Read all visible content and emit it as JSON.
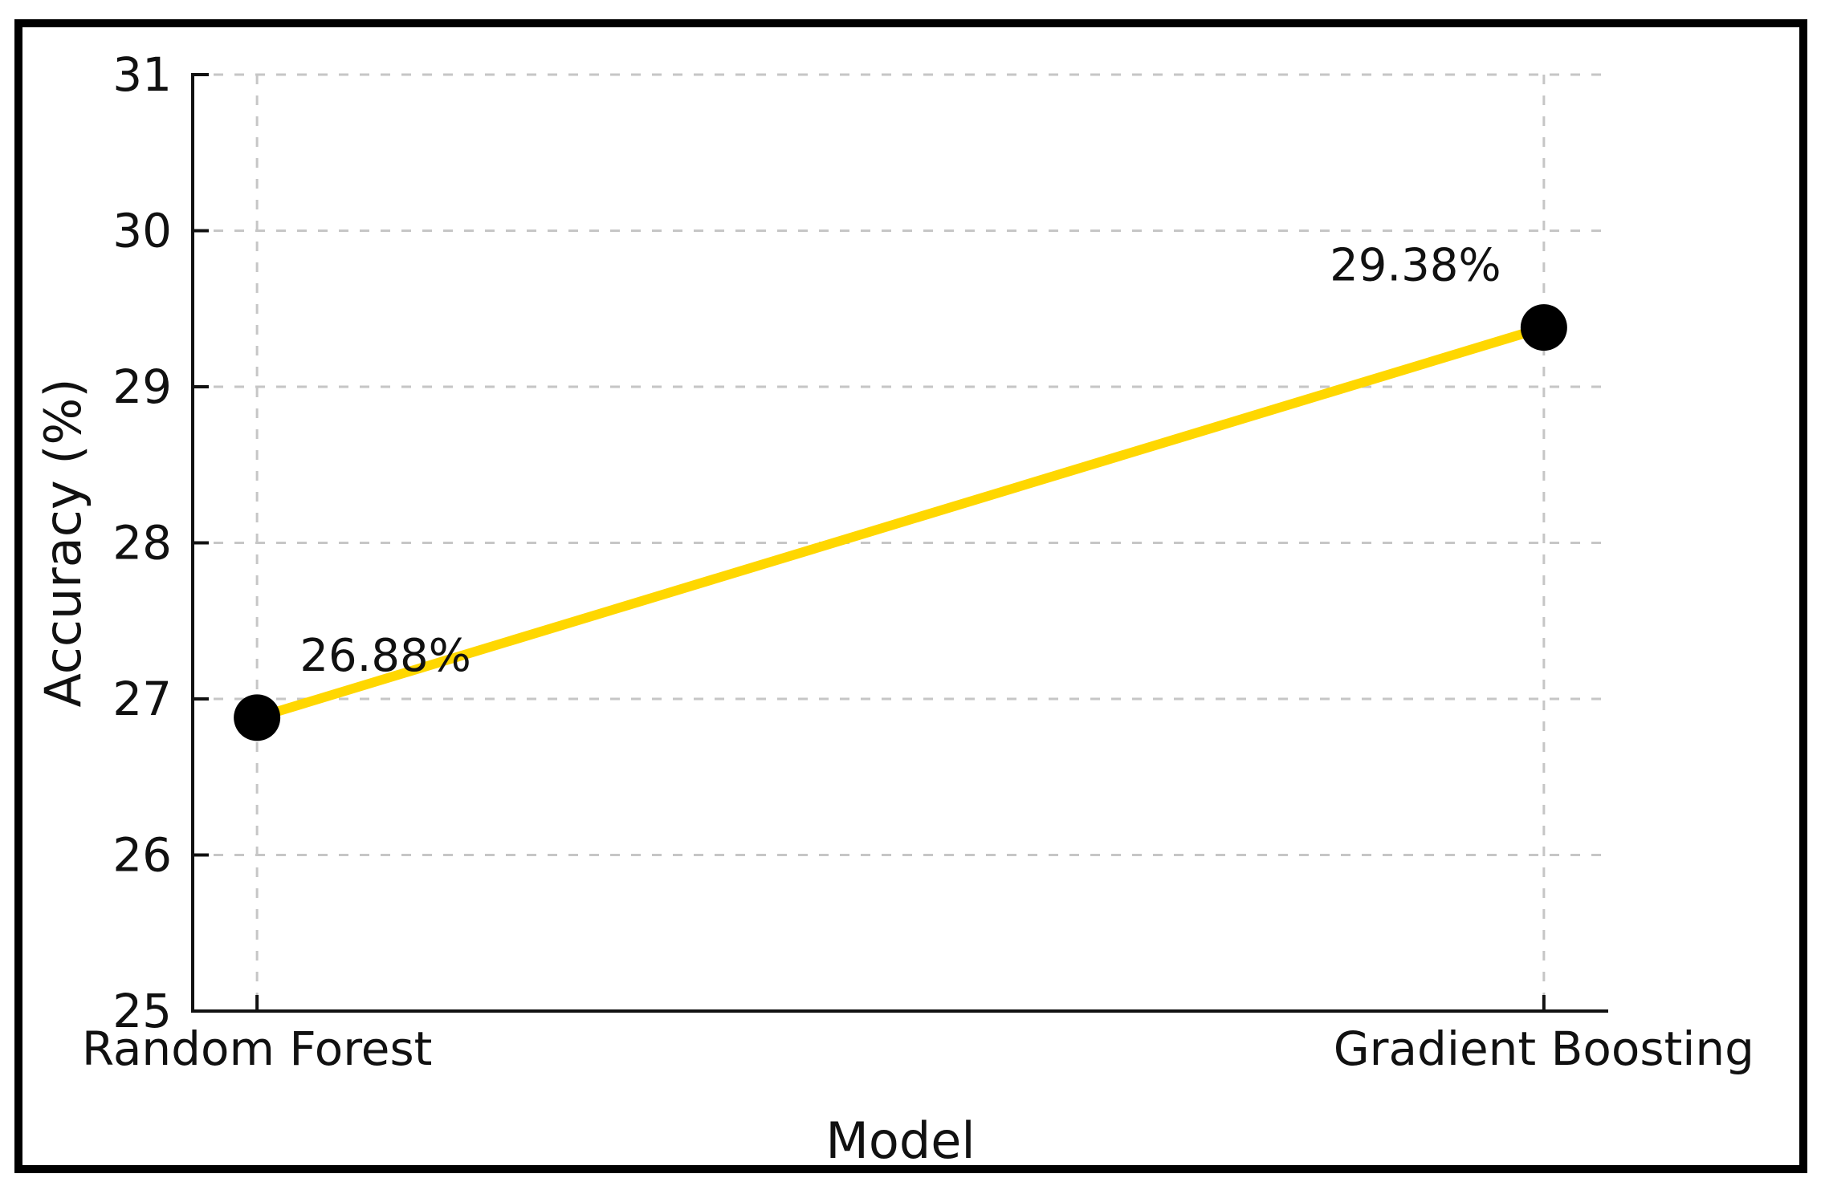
{
  "chart_data": {
    "type": "line",
    "title": "",
    "categories": [
      "Random Forest",
      "Gradient Boosting"
    ],
    "series": [
      {
        "name": "Accuracy",
        "values": [
          26.88,
          29.38
        ]
      }
    ],
    "point_labels": [
      "26.88%",
      "29.38%"
    ],
    "xlabel": "Model",
    "ylabel": "Accuracy (%)",
    "ylim": [
      25,
      31
    ],
    "yticks": [
      25,
      26,
      27,
      28,
      29,
      30,
      31
    ],
    "grid": "dashed",
    "legend": "none",
    "colors": {
      "line": "#FFD700",
      "marker": "#000000",
      "grid": "#c6c6c6",
      "spine": "#111111",
      "text": "#111111",
      "frame": "#000000",
      "background": "#ffffff"
    }
  }
}
